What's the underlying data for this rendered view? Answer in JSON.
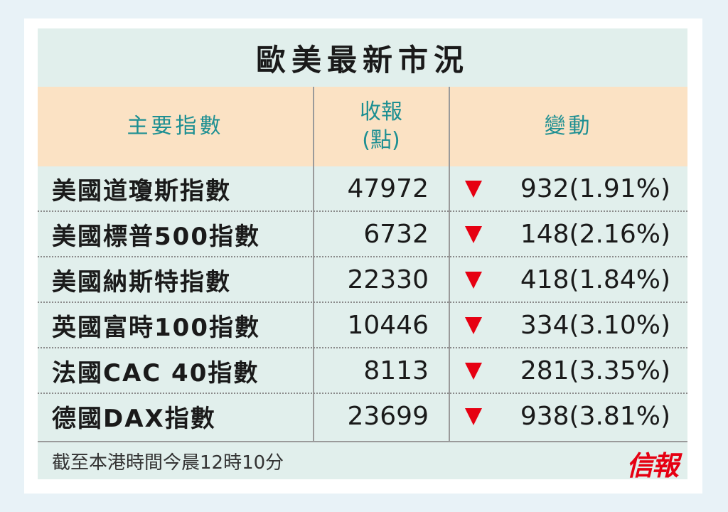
{
  "title": "歐美最新市況",
  "header": {
    "index": "主要指數",
    "close_line1": "收報",
    "close_line2": "(點)",
    "change": "變動"
  },
  "rows": [
    {
      "name": "美國道瓊斯指數",
      "close": "47972",
      "direction": "down",
      "change": "932(1.91%)"
    },
    {
      "name": "美國標普500指數",
      "close": "6732",
      "direction": "down",
      "change": "148(2.16%)"
    },
    {
      "name": "美國納斯特指數",
      "close": "22330",
      "direction": "down",
      "change": "418(1.84%)"
    },
    {
      "name": "英國富時100指數",
      "close": "10446",
      "direction": "down",
      "change": "334(3.10%)"
    },
    {
      "name": "法國CAC 40指數",
      "close": "8113",
      "direction": "down",
      "change": "281(3.35%)"
    },
    {
      "name": "德國DAX指數",
      "close": "23699",
      "direction": "down",
      "change": "938(3.81%)"
    }
  ],
  "footer": {
    "note": "截至本港時間今晨12時10分",
    "logo": "信報"
  },
  "colors": {
    "header_bg": "#fbe2c4",
    "header_text": "#1d8f92",
    "card_bg": "#e1efec",
    "down_arrow": "#e60012",
    "logo": "#e60012"
  }
}
